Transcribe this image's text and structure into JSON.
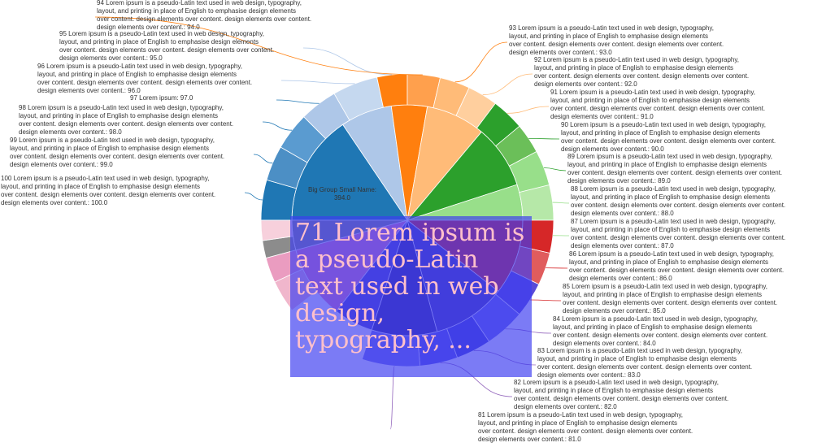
{
  "chart_data": {
    "type": "sunburst",
    "center_label": {
      "name_line": "Big Group Small Name:",
      "value_line": "394.0"
    },
    "leaves": [
      {
        "label": "100 Lorem ipsum is a pseudo-Latin text used in web design, typography, layout, and printing in place of English to emphasise design elements over content. design elements over content. design elements over content. design elements over content.: 100.0",
        "value": 100.0
      },
      {
        "label": "99 Lorem ipsum is a pseudo-Latin text used in web design, typography, layout, and printing in place of English to emphasise design elements over content. design elements over content. design elements over content. design elements over content.: 99.0",
        "value": 99.0
      },
      {
        "label": "98 Lorem ipsum is a pseudo-Latin text used in web design, typography, layout, and printing in place of English to emphasise design elements over content. design elements over content. design elements over content. design elements over content.: 98.0",
        "value": 98.0
      },
      {
        "label": "97 Lorem ipsum: 97.0",
        "value": 97.0
      },
      {
        "label": "96 Lorem ipsum is a pseudo-Latin text used in web design, typography, layout, and printing in place of English to emphasise design elements over content. design elements over content. design elements over content. design elements over content.: 96.0",
        "value": 96.0
      },
      {
        "label": "95 Lorem ipsum is a pseudo-Latin text used in web design, typography, layout, and printing in place of English to emphasise design elements over content. design elements over content. design elements over content. design elements over content.: 95.0",
        "value": 95.0
      },
      {
        "label": "94 Lorem ipsum is a pseudo-Latin text used in web design, typography, layout, and printing in place of English to emphasise design elements over content. design elements over content. design elements over content. design elements over content.: 94.0",
        "value": 94.0
      },
      {
        "label": "93 Lorem ipsum is a pseudo-Latin text used in web design, typography, layout, and printing in place of English to emphasise design elements over content. design elements over content. design elements over content. design elements over content.: 93.0",
        "value": 93.0
      },
      {
        "label": "92 Lorem ipsum is a pseudo-Latin text used in web design, typography, layout, and printing in place of English to emphasise design elements over content. design elements over content. design elements over content. design elements over content.: 92.0",
        "value": 92.0
      },
      {
        "label": "91 Lorem ipsum is a pseudo-Latin text used in web design, typography, layout, and printing in place of English to emphasise design elements over content. design elements over content. design elements over content. design elements over content.: 91.0",
        "value": 91.0
      },
      {
        "label": "90 Lorem ipsum is a pseudo-Latin text used in web design, typography, layout, and printing in place of English to emphasise design elements over content. design elements over content. design elements over content. design elements over content.: 90.0",
        "value": 90.0
      },
      {
        "label": "89 Lorem ipsum is a pseudo-Latin text used in web design, typography, layout, and printing in place of English to emphasise design elements over content. design elements over content. design elements over content. design elements over content.: 89.0",
        "value": 89.0
      },
      {
        "label": "88 Lorem ipsum is a pseudo-Latin text used in web design, typography, layout, and printing in place of English to emphasise design elements over content. design elements over content. design elements over content. design elements over content.: 88.0",
        "value": 88.0
      },
      {
        "label": "87 Lorem ipsum is a pseudo-Latin text used in web design, typography, layout, and printing in place of English to emphasise design elements over content. design elements over content. design elements over content. design elements over content.: 87.0",
        "value": 87.0
      },
      {
        "label": "86 Lorem ipsum is a pseudo-Latin text used in web design, typography, layout, and printing in place of English to emphasise design elements over content. design elements over content. design elements over content. design elements over content.: 86.0",
        "value": 86.0
      },
      {
        "label": "85 Lorem ipsum is a pseudo-Latin text used in web design, typography, layout, and printing in place of English to emphasise design elements over content. design elements over content. design elements over content. design elements over content.: 85.0",
        "value": 85.0
      },
      {
        "label": "84 Lorem ipsum is a pseudo-Latin text used in web design, typography, layout, and printing in place of English to emphasise design elements over content. design elements over content. design elements over content. design elements over content.: 84.0",
        "value": 84.0
      },
      {
        "label": "83 Lorem ipsum is a pseudo-Latin text used in web design, typography, layout, and printing in place of English to emphasise design elements over content. design elements over content. design elements over content. design elements over content.: 83.0",
        "value": 83.0
      },
      {
        "label": "82 Lorem ipsum is a pseudo-Latin text used in web design, typography, layout, and printing in place of English to emphasise design elements over content. design elements over content. design elements over content. design elements over content.: 82.0",
        "value": 82.0
      },
      {
        "label": "81 Lorem ipsum is a pseudo-Latin text used in web design, typography, layout, and printing in place of English to emphasise design elements over content. design elements over content. design elements over content. design elements over content.: 81.0",
        "value": 81.0
      }
    ],
    "tooltip_text": "71 Lorem ipsum is a pseudo-Latin text used in web design, typography, ..."
  },
  "colors": {
    "ring": [
      "#1f77b4",
      "#4c8fc5",
      "#5a9bd0",
      "#aec7e8",
      "#c5d8ef",
      "#ff7f0e",
      "#ffa04d",
      "#ffbb78",
      "#ffcf9e",
      "#2ca02c",
      "#6bbf59",
      "#98df8a",
      "#b6e8a8",
      "#d62728",
      "#e05c5d",
      "#5a4bd8",
      "#6e6ae8",
      "#4a46d4",
      "#5e58e4",
      "#7a76ea",
      "#8c8c8c",
      "#f7d0dc",
      "#f0b6cc",
      "#ea9cc0"
    ],
    "inner": [
      "#1f77b4",
      "#aec7e8",
      "#ff7f0e",
      "#ffbb78",
      "#2ca02c",
      "#98df8a",
      "#d62728",
      "#4b3fb0",
      "#3a2e96",
      "#5447c8",
      "#ee7fb8",
      "#8c8c8c"
    ],
    "leader_line": [
      "#1f77b4",
      "#1f77b4",
      "#1f77b4",
      "#1f77b4",
      "#aec7e8",
      "#aec7e8",
      "#ff7f0e",
      "#ff7f0e",
      "#ffbb78",
      "#ffbb78",
      "#2ca02c",
      "#2ca02c",
      "#98df8a",
      "#98df8a",
      "#d62728",
      "#d62728",
      "#9467bd",
      "#9467bd",
      "#9467bd",
      "#9467bd"
    ]
  }
}
